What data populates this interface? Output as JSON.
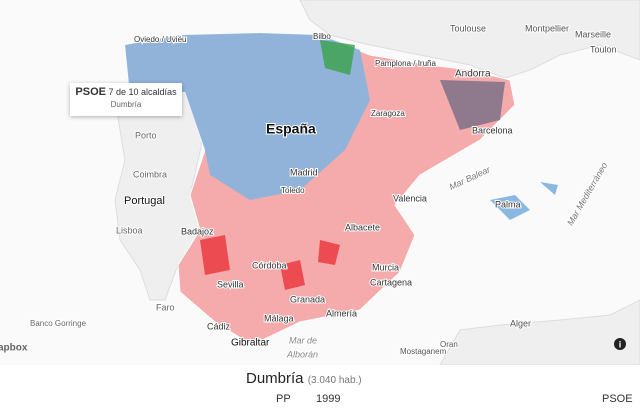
{
  "map": {
    "labels": [
      "Toulouse",
      "Montpellier",
      "Marseille",
      "Toulon",
      "Oviedo / Uviéu",
      "Bilbo",
      "Pamplona / Iruña",
      "Andorra",
      "Zaragoza",
      "Barcelona",
      "España",
      "Porto",
      "Coimbra",
      "Portugal",
      "Lisboa",
      "Madrid",
      "Toledo",
      "Valencia",
      "Albacete",
      "Badajoz",
      "Mar Balear",
      "Palma",
      "Mar Mediterráneo",
      "Córdoba",
      "Sevilla",
      "Murcia",
      "Cartagena",
      "Granada",
      "Faro",
      "Banco Gorringe",
      "Málaga",
      "Almería",
      "Cádiz",
      "Gibraltar",
      "Mar de",
      "Alborán",
      "Alger",
      "Mostaganem",
      "Oran"
    ],
    "attribution": "apbox",
    "info": "i"
  },
  "tooltip": {
    "party": "PSOE",
    "detail": "7 de 10 alcaldías",
    "place": "Dumbría"
  },
  "footer": {
    "place": "Dumbría",
    "population": "(3.040 hab.)",
    "left": "PP",
    "year": "1999",
    "right": "PSOE"
  }
}
